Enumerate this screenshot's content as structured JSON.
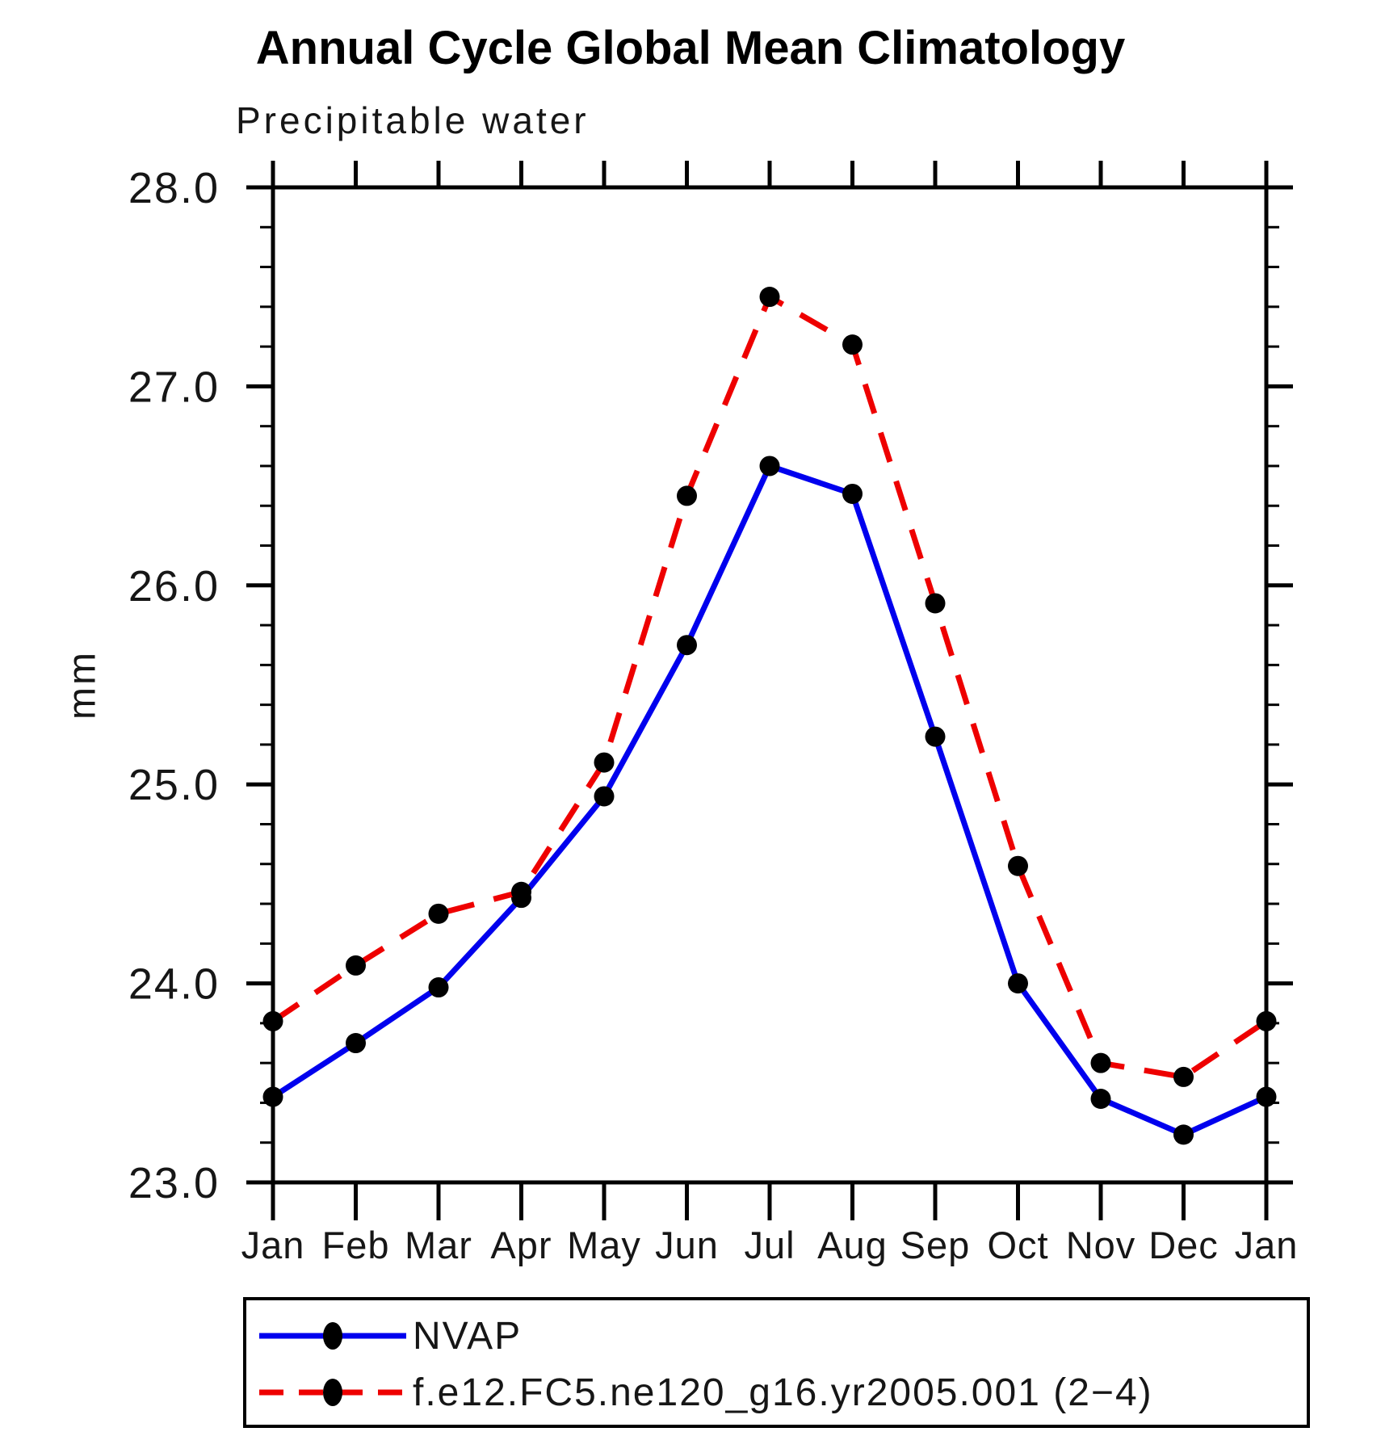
{
  "chart_data": {
    "type": "line",
    "title": "Annual Cycle Global Mean Climatology",
    "subtitle": "Precipitable water",
    "ylabel": "mm",
    "xlabel": "",
    "x_tick_labels": [
      "Jan",
      "Feb",
      "Mar",
      "Apr",
      "May",
      "Jun",
      "Jul",
      "Aug",
      "Sep",
      "Oct",
      "Nov",
      "Dec",
      "Jan"
    ],
    "ylim": [
      23.0,
      28.0
    ],
    "y_major_ticks": [
      23.0,
      24.0,
      25.0,
      26.0,
      27.0,
      28.0
    ],
    "y_major_tick_labels": [
      "23.0",
      "24.0",
      "25.0",
      "26.0",
      "27.0",
      "28.0"
    ],
    "y_minor_step": 0.2,
    "grid": false,
    "legend_position": "bottom",
    "marker_color": "#000000",
    "axis_color": "#000000",
    "series": [
      {
        "name": "NVAP",
        "color": "#0000ee",
        "style": "solid",
        "marker": "circle",
        "values": [
          23.43,
          23.7,
          23.98,
          24.43,
          24.94,
          25.7,
          26.6,
          26.46,
          25.24,
          24.0,
          23.42,
          23.24,
          23.43
        ]
      },
      {
        "name": "f.e12.FC5.ne120_g16.yr2005.001 (2−4)",
        "color": "#ee0000",
        "style": "dashed",
        "marker": "circle",
        "values": [
          23.81,
          24.09,
          24.35,
          24.46,
          25.11,
          26.45,
          27.45,
          27.21,
          25.91,
          24.59,
          23.6,
          23.53,
          23.81
        ]
      }
    ]
  }
}
